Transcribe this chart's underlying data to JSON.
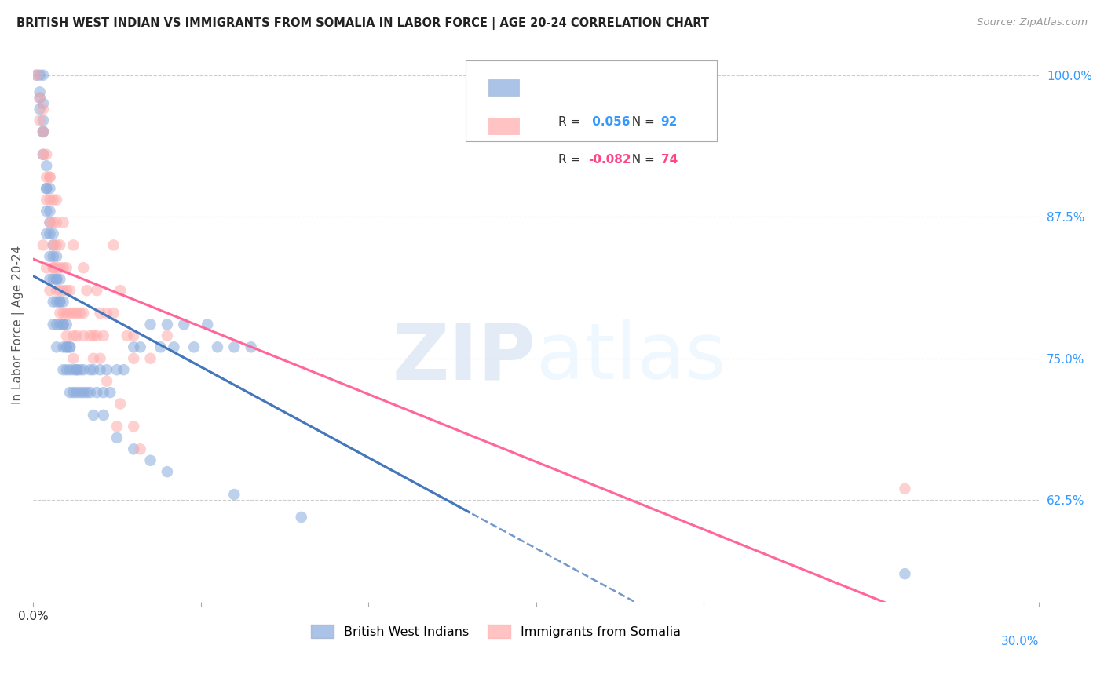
{
  "title": "BRITISH WEST INDIAN VS IMMIGRANTS FROM SOMALIA IN LABOR FORCE | AGE 20-24 CORRELATION CHART",
  "source": "Source: ZipAtlas.com",
  "ylabel": "In Labor Force | Age 20-24",
  "xlim": [
    0.0,
    0.3
  ],
  "ylim": [
    0.535,
    1.025
  ],
  "yticks_right": [
    1.0,
    0.875,
    0.75,
    0.625
  ],
  "ytick_right_labels": [
    "100.0%",
    "87.5%",
    "75.0%",
    "62.5%"
  ],
  "legend_r_blue": "0.056",
  "legend_n_blue": "92",
  "legend_r_pink": "-0.082",
  "legend_n_pink": "74",
  "legend_label_blue": "British West Indians",
  "legend_label_pink": "Immigrants from Somalia",
  "blue_color": "#88AADD",
  "pink_color": "#FFAAAA",
  "blue_line_color": "#4477BB",
  "pink_line_color": "#FF6699",
  "watermark": "ZIPatlas",
  "background_color": "#FFFFFF",
  "grid_color": "#CCCCCC",
  "blue_x": [
    0.001,
    0.002,
    0.002,
    0.002,
    0.003,
    0.003,
    0.003,
    0.003,
    0.003,
    0.004,
    0.004,
    0.004,
    0.004,
    0.005,
    0.005,
    0.005,
    0.005,
    0.005,
    0.006,
    0.006,
    0.006,
    0.006,
    0.006,
    0.007,
    0.007,
    0.007,
    0.007,
    0.007,
    0.008,
    0.008,
    0.008,
    0.009,
    0.009,
    0.009,
    0.009,
    0.01,
    0.01,
    0.01,
    0.011,
    0.011,
    0.011,
    0.012,
    0.012,
    0.013,
    0.013,
    0.014,
    0.014,
    0.015,
    0.016,
    0.017,
    0.017,
    0.018,
    0.019,
    0.02,
    0.021,
    0.022,
    0.023,
    0.025,
    0.027,
    0.03,
    0.032,
    0.035,
    0.038,
    0.04,
    0.042,
    0.045,
    0.048,
    0.052,
    0.055,
    0.06,
    0.065,
    0.002,
    0.003,
    0.004,
    0.005,
    0.006,
    0.007,
    0.008,
    0.009,
    0.01,
    0.011,
    0.013,
    0.015,
    0.018,
    0.021,
    0.025,
    0.03,
    0.035,
    0.04,
    0.06,
    0.08,
    0.26
  ],
  "blue_y": [
    1.0,
    1.0,
    0.985,
    0.97,
    1.0,
    0.975,
    0.96,
    0.95,
    0.93,
    0.92,
    0.9,
    0.88,
    0.86,
    0.9,
    0.88,
    0.86,
    0.84,
    0.82,
    0.86,
    0.84,
    0.82,
    0.8,
    0.78,
    0.84,
    0.82,
    0.8,
    0.78,
    0.76,
    0.82,
    0.8,
    0.78,
    0.8,
    0.78,
    0.76,
    0.74,
    0.78,
    0.76,
    0.74,
    0.76,
    0.74,
    0.72,
    0.74,
    0.72,
    0.74,
    0.72,
    0.74,
    0.72,
    0.74,
    0.72,
    0.74,
    0.72,
    0.74,
    0.72,
    0.74,
    0.72,
    0.74,
    0.72,
    0.74,
    0.74,
    0.76,
    0.76,
    0.78,
    0.76,
    0.78,
    0.76,
    0.78,
    0.76,
    0.78,
    0.76,
    0.76,
    0.76,
    0.98,
    0.95,
    0.9,
    0.87,
    0.85,
    0.82,
    0.8,
    0.78,
    0.76,
    0.76,
    0.74,
    0.72,
    0.7,
    0.7,
    0.68,
    0.67,
    0.66,
    0.65,
    0.63,
    0.61,
    0.56
  ],
  "pink_x": [
    0.001,
    0.002,
    0.002,
    0.003,
    0.003,
    0.003,
    0.004,
    0.004,
    0.004,
    0.005,
    0.005,
    0.005,
    0.006,
    0.006,
    0.006,
    0.006,
    0.007,
    0.007,
    0.007,
    0.008,
    0.008,
    0.008,
    0.009,
    0.009,
    0.01,
    0.01,
    0.01,
    0.011,
    0.011,
    0.012,
    0.012,
    0.013,
    0.013,
    0.014,
    0.015,
    0.016,
    0.017,
    0.018,
    0.019,
    0.02,
    0.021,
    0.022,
    0.024,
    0.026,
    0.028,
    0.03,
    0.035,
    0.04,
    0.003,
    0.004,
    0.005,
    0.006,
    0.007,
    0.008,
    0.009,
    0.01,
    0.012,
    0.015,
    0.018,
    0.022,
    0.026,
    0.03,
    0.005,
    0.007,
    0.009,
    0.012,
    0.015,
    0.019,
    0.024,
    0.03,
    0.02,
    0.26,
    0.025,
    0.032
  ],
  "pink_y": [
    1.0,
    0.98,
    0.96,
    0.97,
    0.95,
    0.93,
    0.93,
    0.91,
    0.89,
    0.91,
    0.89,
    0.87,
    0.89,
    0.87,
    0.85,
    0.83,
    0.87,
    0.85,
    0.83,
    0.85,
    0.83,
    0.81,
    0.83,
    0.81,
    0.83,
    0.81,
    0.79,
    0.81,
    0.79,
    0.79,
    0.77,
    0.79,
    0.77,
    0.79,
    0.79,
    0.81,
    0.77,
    0.77,
    0.77,
    0.79,
    0.77,
    0.79,
    0.85,
    0.81,
    0.77,
    0.75,
    0.75,
    0.77,
    0.85,
    0.83,
    0.81,
    0.83,
    0.81,
    0.79,
    0.79,
    0.77,
    0.75,
    0.77,
    0.75,
    0.73,
    0.71,
    0.69,
    0.91,
    0.89,
    0.87,
    0.85,
    0.83,
    0.81,
    0.79,
    0.77,
    0.75,
    0.635,
    0.69,
    0.67
  ]
}
